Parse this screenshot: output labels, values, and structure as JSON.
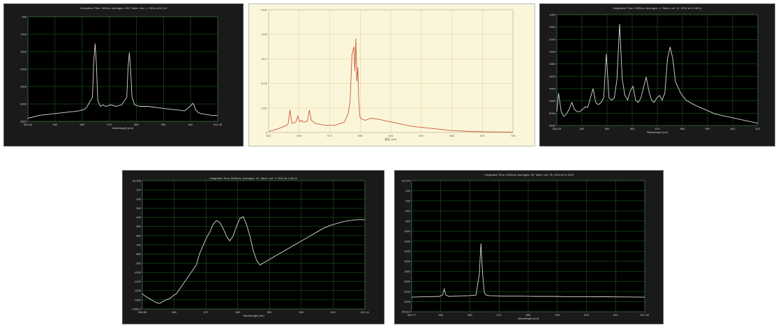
{
  "colors": {
    "dark_bg": "#1a1a1a",
    "plot_bg": "#000000",
    "grid": "#1f6e1f",
    "trace_light": "#d8d8d8",
    "trace_red": "#d0573a",
    "tan_bg": "#fbf6d9",
    "tan_grid": "#d9cfa0"
  },
  "chart_data": [
    {
      "type": "line",
      "title": "Integration Time: 600ms; Averages: 100; Taken: déc. 1, 2014 at 5:0:14",
      "xlabel": "Wavelength (nm)",
      "ylabel": "",
      "xlim": [
        540.52,
        612.49
      ],
      "ylim": [
        498,
        4000
      ],
      "x_tick_labels": [
        "540.52",
        "550",
        "560",
        "570",
        "580",
        "590",
        "600",
        "612.49"
      ],
      "y_tick_labels": [
        "498",
        "1000",
        "1500",
        "2000",
        "2500",
        "3000",
        "3500"
      ],
      "grid": true,
      "series": [
        {
          "x": [
            540.5,
            545,
            550,
            555,
            560,
            562,
            563,
            564,
            565,
            565.5,
            566,
            566.5,
            567,
            568,
            569,
            570,
            572,
            574,
            576,
            578,
            578.5,
            579,
            579.5,
            580,
            581,
            583,
            586,
            590,
            595,
            600,
            602,
            603,
            603.5,
            604,
            605,
            606,
            608,
            610,
            612.5
          ],
          "y": [
            600,
            700,
            750,
            800,
            850,
            900,
            1000,
            1150,
            1300,
            2500,
            3100,
            2400,
            1200,
            1000,
            1050,
            1000,
            1050,
            1000,
            1050,
            1300,
            2300,
            2800,
            2200,
            1300,
            1050,
            1000,
            1000,
            950,
            900,
            850,
            1000,
            1100,
            1050,
            900,
            800,
            760,
            730,
            700,
            690
          ]
        }
      ]
    },
    {
      "type": "line",
      "title": "",
      "xlabel": "波长 (nm)",
      "ylabel": "",
      "xlim": [
        532,
        784
      ],
      "ylim": [
        0,
        6000
      ],
      "x_tick_labels": [
        "532",
        "553",
        "574",
        "596",
        "616",
        "637",
        "658",
        "679",
        "700"
      ],
      "y_tick_labels": [
        "0",
        "1037",
        "2075",
        "3112",
        "4150",
        "5187"
      ],
      "grid": true,
      "series": [
        {
          "x": [
            532,
            540,
            548,
            552,
            554,
            556,
            560,
            562,
            564,
            566,
            568,
            572,
            574,
            576,
            580,
            590,
            600,
            610,
            614,
            616,
            618,
            620,
            621,
            622,
            623,
            624,
            625,
            626,
            628,
            632,
            638,
            645,
            660,
            680,
            700,
            720,
            740,
            760,
            784
          ],
          "y": [
            50,
            150,
            300,
            400,
            1100,
            450,
            500,
            800,
            520,
            600,
            500,
            560,
            1100,
            600,
            450,
            350,
            350,
            500,
            900,
            1500,
            3800,
            4200,
            3000,
            4600,
            2500,
            3200,
            1500,
            800,
            650,
            600,
            700,
            650,
            500,
            300,
            200,
            100,
            50,
            30,
            20
          ]
        }
      ]
    },
    {
      "type": "line",
      "title": "Integration Time: 2000ms; Averages: 1; Taken: oct. 11, 2014 at 12:48:11",
      "xlabel": "Wavelength (nm)",
      "ylabel": "",
      "xlim": [
        536.35,
        612
      ],
      "ylim": [
        900,
        5700
      ],
      "x_tick_labels": [
        "536.35",
        "540",
        "550",
        "560",
        "570",
        "580",
        "590",
        "600",
        "612"
      ],
      "y_tick_labels": [
        "1000",
        "1500",
        "2000",
        "2500",
        "3000",
        "3500",
        "4000",
        "4500",
        "5000",
        "5500"
      ],
      "grid": true,
      "series": [
        {
          "x": [
            536.35,
            537,
            538,
            539,
            540,
            541,
            542,
            543,
            544,
            545,
            546,
            547,
            548,
            550,
            551,
            552,
            553,
            554,
            555,
            556,
            557,
            558,
            559,
            560,
            561,
            562,
            563,
            564,
            565,
            566,
            567,
            568,
            570,
            571,
            572,
            573,
            574,
            575,
            576,
            577,
            578,
            579,
            580,
            581,
            583,
            585,
            588,
            592,
            596,
            600,
            604,
            608,
            612
          ],
          "y": [
            1500,
            2300,
            1500,
            1300,
            1400,
            1600,
            1900,
            1600,
            1500,
            1500,
            1600,
            1700,
            1700,
            2500,
            1900,
            1800,
            1900,
            2100,
            4000,
            2100,
            2000,
            2100,
            2900,
            5300,
            2900,
            2200,
            2000,
            2400,
            2600,
            2000,
            1900,
            2100,
            3000,
            2400,
            2000,
            1900,
            2100,
            2200,
            2000,
            2300,
            3800,
            4300,
            3800,
            2800,
            2300,
            2000,
            1800,
            1600,
            1400,
            1300,
            1200,
            1100,
            1000
          ]
        }
      ]
    },
    {
      "type": "line",
      "title": "Integration Time: 5000ms; Averages: 10; Taken: oct. 9, 2014 at 1:28:14",
      "xlabel": "Wavelength (nm)",
      "ylabel": "",
      "xlim": [
        545.85,
        612.41
      ],
      "ylim": [
        -1356.3,
        -26.3
      ],
      "x_tick_labels": [
        "545.85",
        "560",
        "570",
        "580",
        "590",
        "600",
        "610",
        "612.41"
      ],
      "y_tick_labels": [
        "-26.308",
        "-100",
        "-200",
        "-300",
        "-400",
        "-500",
        "-600",
        "-700",
        "-800",
        "-900",
        "-1000",
        "-1100",
        "-1200",
        "-1300",
        "-1356.3"
      ],
      "grid": true,
      "series": [
        {
          "x": [
            545.85,
            547,
            548,
            549,
            550,
            551,
            552,
            553,
            554,
            555,
            556,
            557,
            558,
            559,
            560,
            561,
            562,
            563,
            564,
            565,
            566,
            567,
            568,
            569,
            570,
            571,
            572,
            573,
            574,
            575,
            576,
            577,
            578,
            579,
            580,
            581,
            582,
            583,
            584,
            585,
            586,
            587,
            588,
            589,
            590,
            591,
            592,
            594,
            596,
            598,
            600,
            602,
            604,
            606,
            608,
            610,
            612.41
          ],
          "y": [
            -1200,
            -1230,
            -1250,
            -1270,
            -1290,
            -1300,
            -1280,
            -1260,
            -1250,
            -1220,
            -1200,
            -1150,
            -1100,
            -1050,
            -1000,
            -950,
            -900,
            -780,
            -700,
            -620,
            -560,
            -480,
            -440,
            -460,
            -520,
            -600,
            -650,
            -600,
            -500,
            -420,
            -400,
            -480,
            -600,
            -750,
            -850,
            -900,
            -880,
            -860,
            -840,
            -820,
            -800,
            -780,
            -760,
            -740,
            -720,
            -700,
            -680,
            -640,
            -600,
            -560,
            -520,
            -490,
            -470,
            -450,
            -440,
            -430,
            -430
          ]
        }
      ]
    },
    {
      "type": "line",
      "title": "Integration Time: 2000ms; Averages: 20; Taken: oct. 31, 2014 at 11:29:8",
      "xlabel": "Wavelength (nm)",
      "ylabel": "",
      "xlim": [
        542.77,
        612.49
      ],
      "ylim": [
        -22.576,
        2518.3
      ],
      "x_tick_labels": [
        "542.77",
        "550",
        "560",
        "570",
        "580",
        "590",
        "600",
        "610",
        "612.49"
      ],
      "y_tick_labels": [
        "-22.576",
        "200",
        "400",
        "600",
        "800",
        "1000",
        "1200",
        "1400",
        "1600",
        "1800",
        "2000",
        "2200",
        "2400",
        "2518.3"
      ],
      "grid": true,
      "series": [
        {
          "x": [
            542.77,
            545,
            548,
            551,
            552,
            552.5,
            553,
            554,
            556,
            558,
            560,
            562,
            563,
            563.5,
            564,
            564.5,
            565,
            566,
            568,
            570,
            575,
            580,
            585,
            590,
            595,
            600,
            605,
            610,
            612.49
          ],
          "y": [
            260,
            265,
            270,
            275,
            300,
            420,
            300,
            275,
            280,
            285,
            290,
            300,
            700,
            1300,
            700,
            350,
            300,
            290,
            285,
            280,
            280,
            275,
            275,
            270,
            270,
            268,
            265,
            262,
            260
          ]
        }
      ]
    }
  ]
}
